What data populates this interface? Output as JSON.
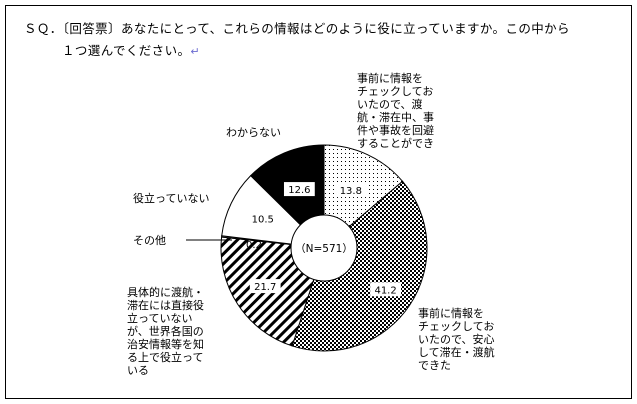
{
  "question": {
    "line1": "ＳＱ．〔回答票〕あなたにとって、これらの情報はどのように役に立っていますか。この中から",
    "line2": "１つ選んでください。",
    "return_mark": "↵"
  },
  "chart_data": {
    "type": "pie",
    "center_label": "（N=571）",
    "slices": [
      {
        "label": "事前に情報を\nチェックしてお\nいたので、渡\n航・滞在中、事\n件や事故を回避\nすることができ",
        "value": 13.8,
        "value_text": "13.8",
        "pattern": "dots"
      },
      {
        "label": "事前に情報を\nチェックしてお\nいたので、安心\nして滞在・渡航\nできた",
        "value": 41.2,
        "value_text": "41.2",
        "pattern": "checker"
      },
      {
        "label": "具体的に渡航・\n滞在には直接役\n立っていない\nが、世界各国の\n治安情報等を知\nる上で役立って\nいる",
        "value": 21.7,
        "value_text": "21.7",
        "pattern": "stripes"
      },
      {
        "label": "その他",
        "value": 0.2,
        "value_text": "0.2",
        "pattern": "gray"
      },
      {
        "label": "役立っていない",
        "value": 10.5,
        "value_text": "10.5",
        "pattern": "white"
      },
      {
        "label": "わからない",
        "value": 12.6,
        "value_text": "12.6",
        "pattern": "black"
      }
    ]
  }
}
